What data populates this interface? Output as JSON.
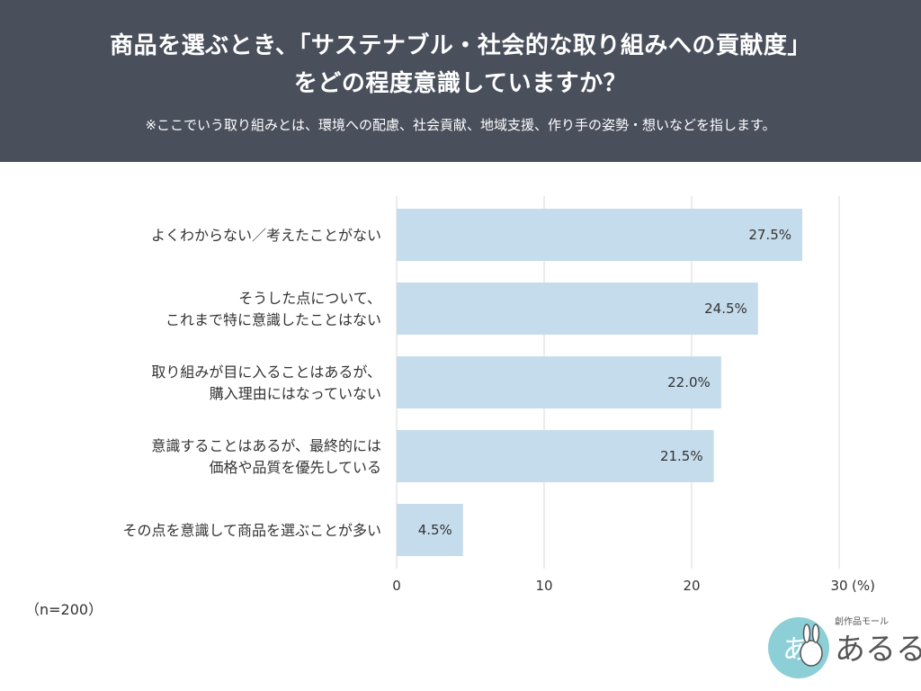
{
  "header": {
    "title_line1": "商品を選ぶとき、「サステナブル・社会的な取り組みへの貢献度」",
    "title_line2": "をどの程度意識していますか？",
    "note": "※ここでいう取り組みとは、環境への配慮、社会貢献、地域支援、作り手の姿勢・想いなどを指します。"
  },
  "sample": "（n=200）",
  "logo": {
    "small_text": "創作品モール",
    "big_text": "あるる",
    "badge_text": "あ"
  },
  "colors": {
    "header_bg": "#4a4f5c",
    "bar": "#c5dced",
    "grid": "#d9d9d9"
  },
  "chart_data": {
    "type": "bar",
    "orientation": "horizontal",
    "categories": [
      [
        "よくわからない／考えたことがない"
      ],
      [
        "そうした点について、",
        "これまで特に意識したことはない"
      ],
      [
        "取り組みが目に入ることはあるが、",
        "購入理由にはなっていない"
      ],
      [
        "意識することはあるが、最終的には",
        "価格や品質を優先している"
      ],
      [
        "その点を意識して商品を選ぶことが多い"
      ]
    ],
    "values": [
      27.5,
      24.5,
      22.0,
      21.5,
      4.5
    ],
    "value_labels": [
      "27.5%",
      "24.5%",
      "22.0%",
      "21.5%",
      "4.5%"
    ],
    "xlim": [
      0,
      30
    ],
    "xticks": [
      "0",
      "10",
      "20",
      "30"
    ],
    "unit_label": "(%)",
    "grid": true
  }
}
